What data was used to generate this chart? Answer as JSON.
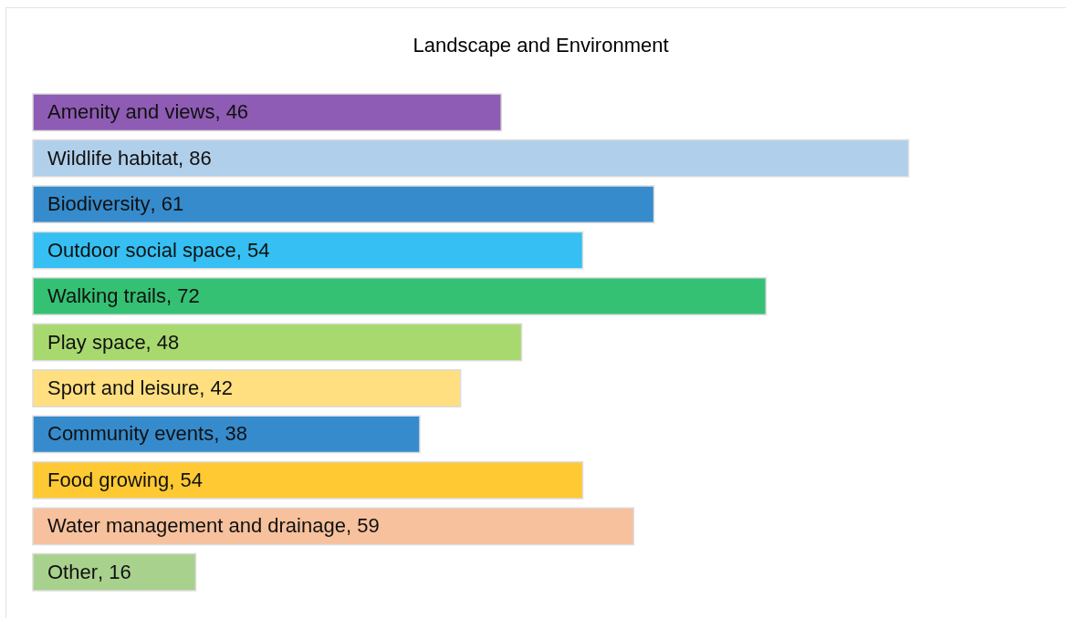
{
  "chart_data": {
    "type": "bar",
    "orientation": "horizontal",
    "title": "Landscape and Environment",
    "categories": [
      "Amenity and views",
      "Wildlife habitat",
      "Biodiversity",
      "Outdoor social space",
      "Walking trails",
      "Play space",
      "Sport and leisure",
      "Community events",
      "Food growing",
      "Water management and drainage",
      "Other"
    ],
    "values": [
      46,
      86,
      61,
      54,
      72,
      48,
      42,
      38,
      54,
      59,
      16
    ],
    "colors": [
      "#8e5cb4",
      "#b0cfeb",
      "#368bcc",
      "#35bff2",
      "#34c173",
      "#a8d96f",
      "#ffdf80",
      "#368bcc",
      "#ffc933",
      "#f6c19c",
      "#a8d18d"
    ],
    "value_labels": [
      ", 46",
      ", 86",
      ", 61",
      ", 54",
      ", 72",
      ", 48",
      ", 42",
      ", 38",
      ", 54",
      ", 59",
      ", 16"
    ]
  }
}
